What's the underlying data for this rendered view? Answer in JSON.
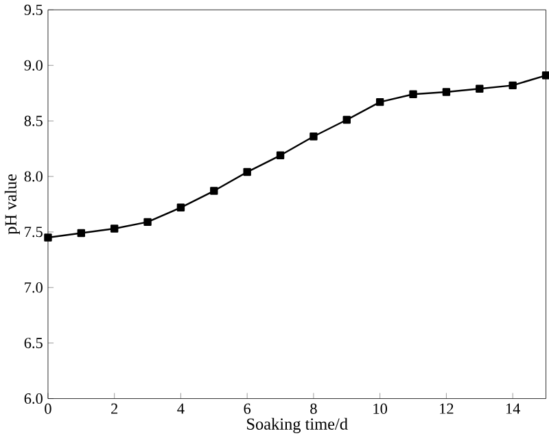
{
  "chart_data": {
    "type": "line",
    "xlabel": "Soaking time/d",
    "ylabel": "pH value",
    "x": [
      0,
      1,
      2,
      3,
      4,
      5,
      6,
      7,
      8,
      9,
      10,
      11,
      12,
      13,
      14,
      15
    ],
    "values": [
      7.45,
      7.49,
      7.53,
      7.59,
      7.72,
      7.87,
      8.04,
      8.19,
      8.36,
      8.51,
      8.67,
      8.74,
      8.76,
      8.79,
      8.82,
      8.91
    ],
    "color": "#000000",
    "marker": "square",
    "xlim": [
      0,
      15
    ],
    "xticks": [
      0,
      2,
      4,
      6,
      8,
      10,
      12,
      14
    ],
    "ylim": [
      6.0,
      9.5
    ],
    "yticks": [
      {
        "value": 6.0,
        "label": "6.0"
      },
      {
        "value": 6.5,
        "label": "6.5"
      },
      {
        "value": 7.0,
        "label": "7.0"
      },
      {
        "value": 7.5,
        "label": "7.5"
      },
      {
        "value": 8.0,
        "label": "8.0"
      },
      {
        "value": 8.5,
        "label": "8.5"
      },
      {
        "value": 9.0,
        "label": "9.0"
      },
      {
        "value": 9.5,
        "label": "9.5"
      }
    ],
    "line_style": "solid"
  }
}
